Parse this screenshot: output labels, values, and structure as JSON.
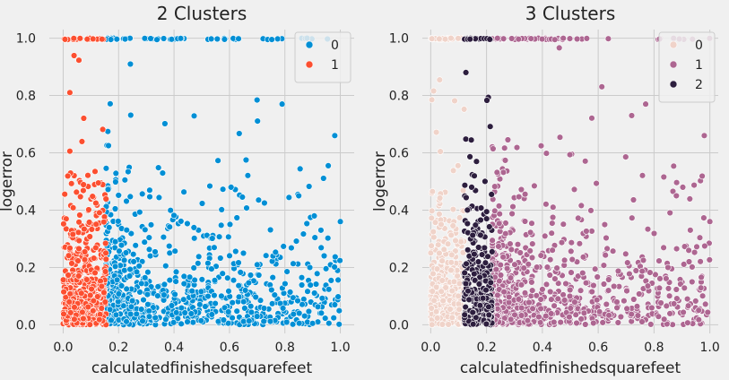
{
  "chart_data": [
    {
      "type": "scatter",
      "title": "2 Clusters",
      "xlabel": "calculatedfinishedsquarefeet",
      "ylabel": "logerror",
      "xlim": [
        -0.05,
        1.05
      ],
      "ylim": [
        -0.03,
        1.03
      ],
      "xticks": [
        "0.0",
        "0.2",
        "0.4",
        "0.6",
        "0.8",
        "1.0"
      ],
      "yticks": [
        "0.0",
        "0.2",
        "0.4",
        "0.6",
        "0.8",
        "1.0"
      ],
      "grid": true,
      "legend_position": "top-right",
      "series": [
        {
          "name": "0",
          "color": "#008fd5",
          "x_range": [
            0.155,
            1.0
          ]
        },
        {
          "name": "1",
          "color": "#fc4f30",
          "x_range": [
            0.0,
            0.155
          ]
        }
      ],
      "sample_points": [
        [
          1.0,
          0.36
        ],
        [
          0.98,
          0.66
        ],
        [
          0.98,
          0.07
        ],
        [
          0.93,
          0.33
        ],
        [
          0.89,
          0.2
        ],
        [
          0.85,
          0.45
        ],
        [
          0.79,
          0.77
        ],
        [
          0.88,
          1.0
        ]
      ]
    },
    {
      "type": "scatter",
      "title": "3 Clusters",
      "xlabel": "calculatedfinishedsquarefeet",
      "ylabel": "logerror",
      "xlim": [
        -0.03,
        1.03
      ],
      "ylim": [
        -0.03,
        1.03
      ],
      "xticks": [
        "0.0",
        "0.2",
        "0.4",
        "0.6",
        "0.8",
        "1.0"
      ],
      "yticks": [
        "0.0",
        "0.2",
        "0.4",
        "0.6",
        "0.8",
        "1.0"
      ],
      "grid": true,
      "legend_position": "top-right",
      "series": [
        {
          "name": "0",
          "color": "#f0d3c9",
          "x_range": [
            0.0,
            0.12
          ]
        },
        {
          "name": "1",
          "color": "#ad6691",
          "x_range": [
            0.22,
            1.0
          ]
        },
        {
          "name": "2",
          "color": "#2d1e3e",
          "x_range": [
            0.12,
            0.22
          ]
        }
      ],
      "sample_points": [
        [
          1.0,
          0.36
        ],
        [
          0.98,
          0.66
        ],
        [
          0.93,
          0.33
        ],
        [
          0.88,
          0.45
        ],
        [
          0.85,
          0.2
        ],
        [
          0.77,
          0.77
        ],
        [
          0.72,
          0.73
        ]
      ]
    }
  ]
}
